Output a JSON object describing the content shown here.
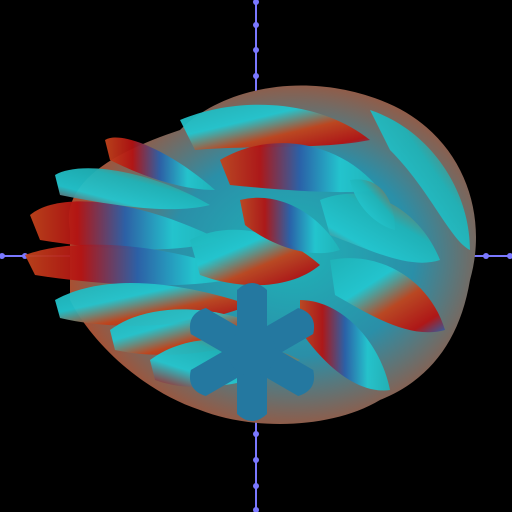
{
  "scene": {
    "background": "#000000",
    "axis_color": "#7a78ff",
    "palette": {
      "red": "#b31212",
      "orange": "#c0441c",
      "teal": "#1fb3b8",
      "cyan": "#23c6cf",
      "blue": "#2a5fa8",
      "star": "#2478a0"
    },
    "star_arms": 6,
    "axis_ticks": 4
  }
}
